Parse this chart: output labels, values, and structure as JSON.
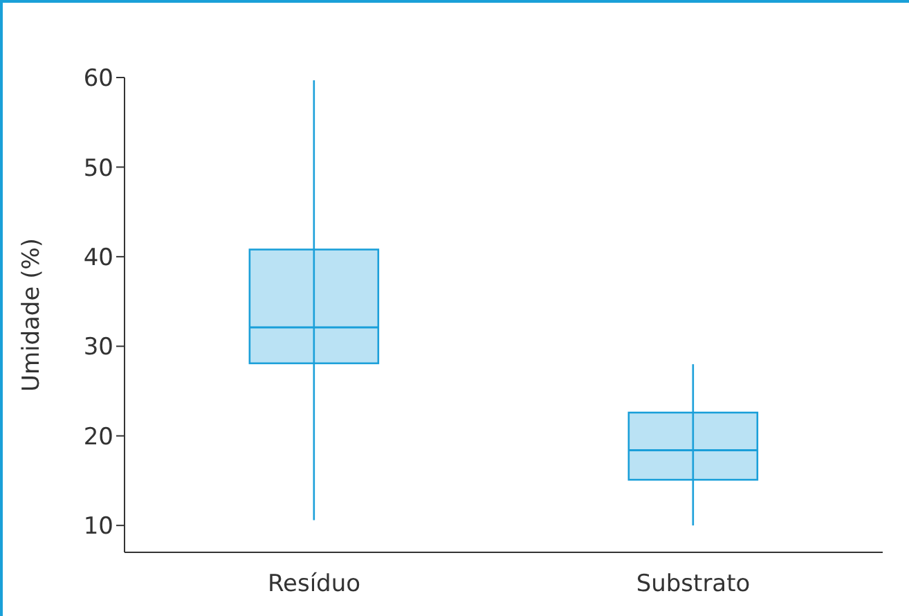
{
  "chart_data": {
    "type": "box",
    "ylabel": "Umidade (%)",
    "categories": [
      "Resíduo",
      "Substrato"
    ],
    "color": "#1a9fd9",
    "boxes": [
      {
        "low": 10.6,
        "q1": 28.1,
        "median": 32.1,
        "q3": 40.8,
        "high": 59.7
      },
      {
        "low": 10,
        "q1": 15.1,
        "median": 18.4,
        "q3": 22.6,
        "high": 28
      }
    ],
    "ylim": [
      7,
      60
    ],
    "yticks": [
      10,
      20,
      30,
      40,
      50,
      60
    ],
    "grid": false
  }
}
